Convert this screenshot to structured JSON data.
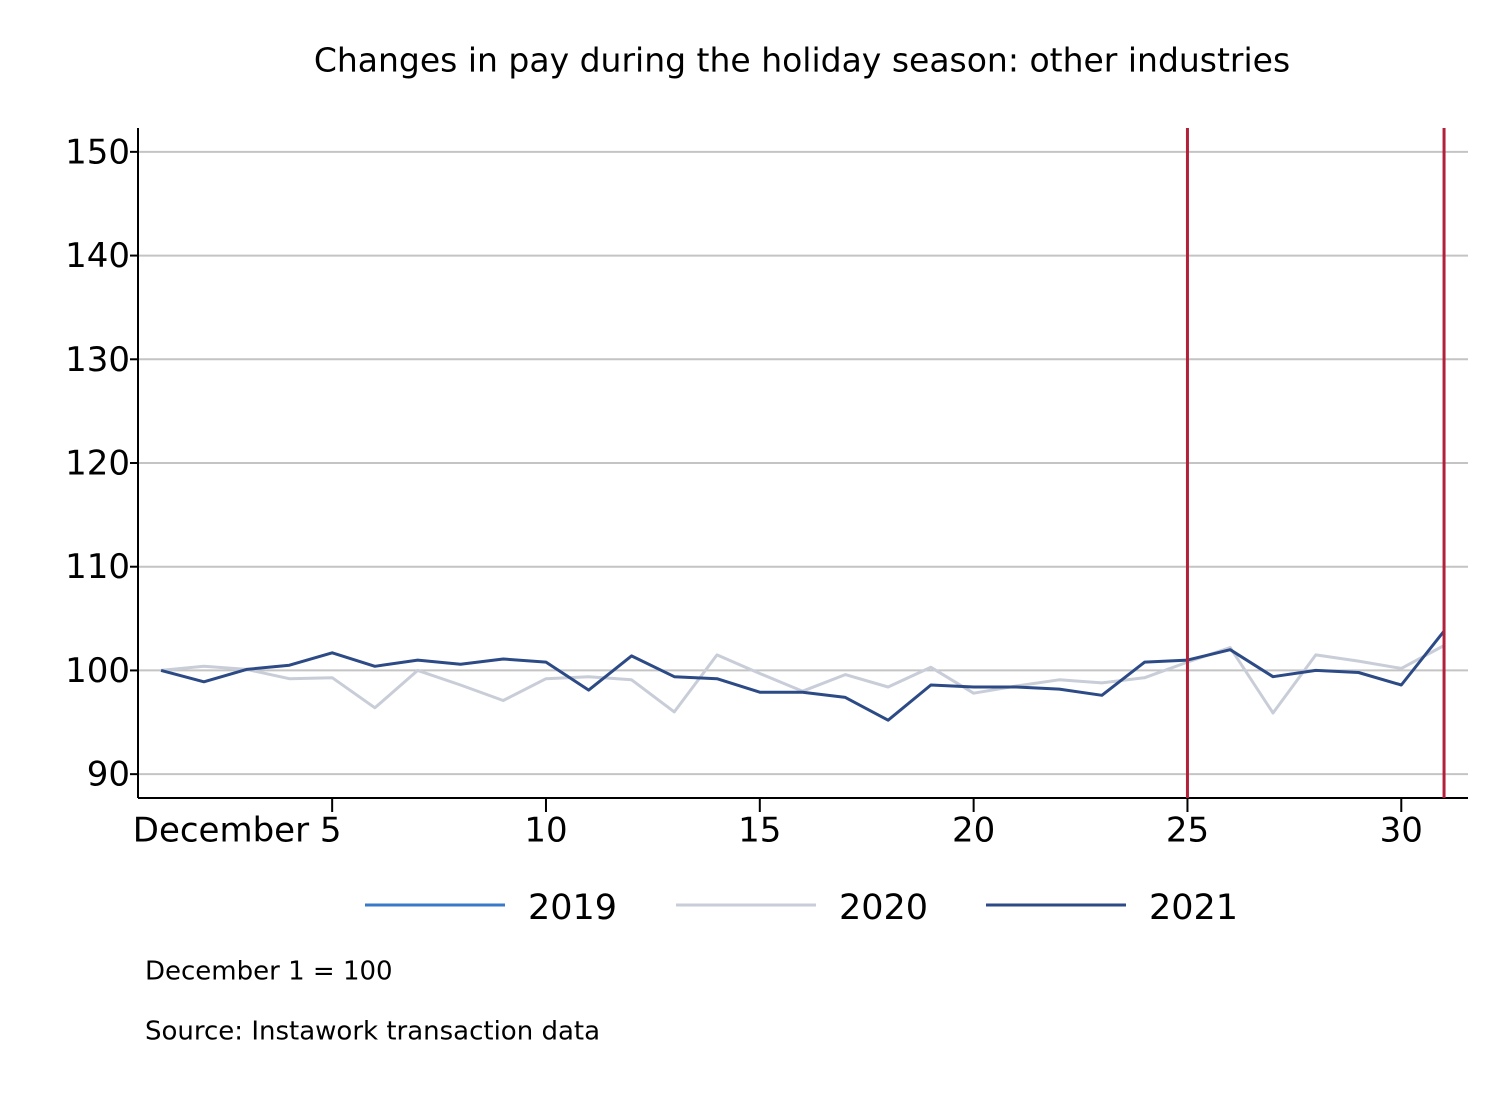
{
  "chart_data": {
    "type": "line",
    "title": "Changes in pay during the holiday season: other industries",
    "x": [
      1,
      2,
      3,
      4,
      5,
      6,
      7,
      8,
      9,
      10,
      11,
      12,
      13,
      14,
      15,
      16,
      17,
      18,
      19,
      20,
      21,
      22,
      23,
      24,
      25,
      26,
      27,
      28,
      29,
      30,
      31
    ],
    "series": [
      {
        "name": "2019",
        "color": "#3a78c9",
        "values": [
          null,
          null,
          null,
          null,
          null,
          null,
          null,
          null,
          null,
          null,
          null,
          null,
          null,
          null,
          null,
          null,
          null,
          null,
          null,
          null,
          null,
          null,
          null,
          null,
          null,
          null,
          null,
          null,
          null,
          null,
          null
        ]
      },
      {
        "name": "2020",
        "color": "#c8cdd8",
        "values": [
          100,
          100.4,
          100.1,
          99.2,
          99.3,
          96.4,
          100,
          98.6,
          97.1,
          99.2,
          99.4,
          99.1,
          96.0,
          101.5,
          99.7,
          98.0,
          99.6,
          98.4,
          100.3,
          97.8,
          98.5,
          99.1,
          98.8,
          99.3,
          100.8,
          102.2,
          95.9,
          101.5,
          100.9,
          100.2,
          102.4
        ]
      },
      {
        "name": "2021",
        "color": "#2c4a85",
        "values": [
          100,
          98.9,
          100.1,
          100.5,
          101.7,
          100.4,
          101.0,
          100.6,
          101.1,
          100.8,
          98.1,
          101.4,
          99.4,
          99.2,
          97.9,
          97.9,
          97.4,
          95.2,
          98.6,
          98.4,
          98.4,
          98.2,
          97.6,
          100.8,
          101.0,
          102.0,
          99.4,
          100.0,
          99.8,
          98.6,
          103.8
        ]
      }
    ],
    "vlines": [
      25,
      31
    ],
    "vline_color": "#b3203a",
    "xlim": [
      0.46,
      31.56
    ],
    "xticks": [
      {
        "value": 5,
        "label": "December 5"
      },
      10,
      15,
      20,
      25,
      30
    ],
    "ylim": [
      87.7,
      152.3
    ],
    "yticks": [
      90,
      100,
      110,
      120,
      130,
      140,
      150
    ],
    "grid": true,
    "legend": "bottom",
    "notes": [
      "December 1 = 100",
      "Source: Instawork transaction data"
    ]
  }
}
